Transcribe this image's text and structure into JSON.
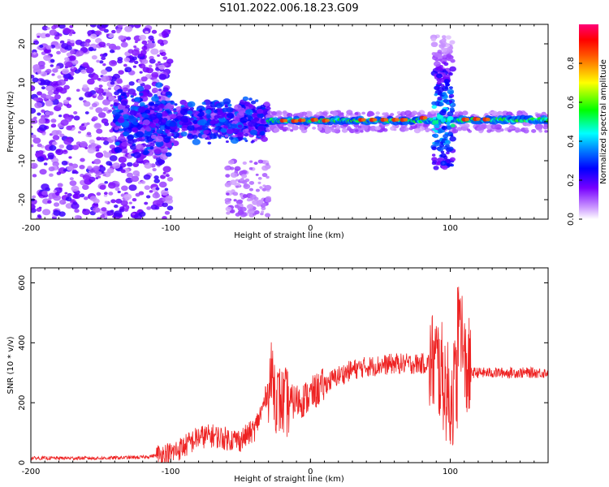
{
  "title": "S101.2022.006.18.23.G09",
  "colors": {
    "snr_line": "#ee2222",
    "frame": "#000000"
  },
  "chart_data": [
    {
      "type": "heatmap",
      "xlabel": "Height of straight line (km)",
      "ylabel": "Frequency (Hz)",
      "xlim": [
        -200,
        170
      ],
      "ylim": [
        -25,
        25
      ],
      "xticks": [
        -200,
        -100,
        0,
        100
      ],
      "xtick_labels": [
        "-200",
        "-100",
        "0",
        "100"
      ],
      "yticks": [
        -20,
        -10,
        0,
        10,
        20
      ],
      "ytick_labels": [
        "-20",
        "-10",
        "0",
        "10",
        "20"
      ],
      "colorbar": {
        "label": "Normalized spectral amplitude",
        "range": [
          0,
          1
        ],
        "ticks": [
          0.0,
          0.2,
          0.4,
          0.6,
          0.8
        ],
        "tick_labels": [
          "0.0",
          "0.2",
          "0.4",
          "0.6",
          "0.8"
        ],
        "colormap": "rainbow (white-violet to red-magenta)"
      },
      "features": [
        {
          "x_range": [
            -200,
            -110
          ],
          "freq_range": [
            -25,
            25
          ],
          "amplitude": "scattered 0.05-0.3"
        },
        {
          "x_range": [
            -110,
            -30
          ],
          "freq_range": [
            -6,
            6
          ],
          "amplitude": "0.2-0.5 clusters"
        },
        {
          "x_range": [
            -30,
            170
          ],
          "freq_range": [
            -1.5,
            1.5
          ],
          "amplitude": "0.6-1.0 steady band near 0 Hz"
        },
        {
          "x_range": [
            88,
            100
          ],
          "freq_range": [
            -12,
            22
          ],
          "amplitude": "spike/disturbance"
        }
      ]
    },
    {
      "type": "line",
      "xlabel": "Height of straight line (km)",
      "ylabel": "SNR (10 * v/v)",
      "xlim": [
        -200,
        170
      ],
      "ylim": [
        0,
        650
      ],
      "xticks": [
        -200,
        -100,
        0,
        100
      ],
      "xtick_labels": [
        "-200",
        "-100",
        "0",
        "100"
      ],
      "yticks": [
        0,
        200,
        400,
        600
      ],
      "ytick_labels": [
        "0",
        "200",
        "400",
        "600"
      ],
      "series": [
        {
          "x": [
            -200,
            -150,
            -120,
            -100,
            -90,
            -80,
            -70,
            -60,
            -50,
            -40,
            -35,
            -30,
            -27,
            -25,
            -20,
            -15,
            -10,
            -5,
            0,
            10,
            20,
            30,
            40,
            50,
            60,
            70,
            80,
            90,
            95,
            100,
            105,
            108,
            110,
            115,
            120,
            130,
            140,
            150,
            160,
            170
          ],
          "values": [
            15,
            15,
            18,
            30,
            55,
            85,
            90,
            80,
            75,
            110,
            170,
            250,
            300,
            220,
            200,
            200,
            205,
            210,
            225,
            260,
            290,
            310,
            320,
            325,
            330,
            330,
            330,
            335,
            280,
            200,
            280,
            330,
            320,
            300,
            300,
            300,
            300,
            300,
            300,
            300
          ]
        }
      ]
    }
  ]
}
